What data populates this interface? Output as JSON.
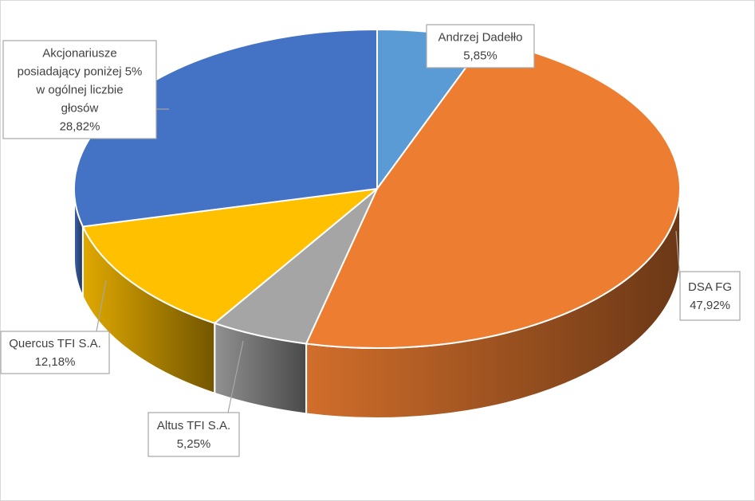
{
  "chart_data": {
    "type": "pie",
    "title": "",
    "slices": [
      {
        "label": "Andrzej Dadełło",
        "value_label": "5,85%",
        "value": 5.85,
        "color": "#5b9bd5"
      },
      {
        "label": "DSA FG",
        "value_label": "47,92%",
        "value": 47.92,
        "color": "#ed7d31"
      },
      {
        "label": "Altus TFI S.A.",
        "value_label": "5,25%",
        "value": 5.25,
        "color": "#a5a5a5"
      },
      {
        "label": "Quercus TFI S.A.",
        "value_label": "12,18%",
        "value": 12.18,
        "color": "#ffc000"
      },
      {
        "label_lines": [
          "Akcjonariusze",
          "posiadający poniżej 5%",
          "w ogólnej liczbie",
          "głosów"
        ],
        "value_label": "28,82%",
        "value": 28.82,
        "color": "#4472c4"
      }
    ],
    "legend": "none",
    "start_position": "top",
    "three_d": true
  }
}
